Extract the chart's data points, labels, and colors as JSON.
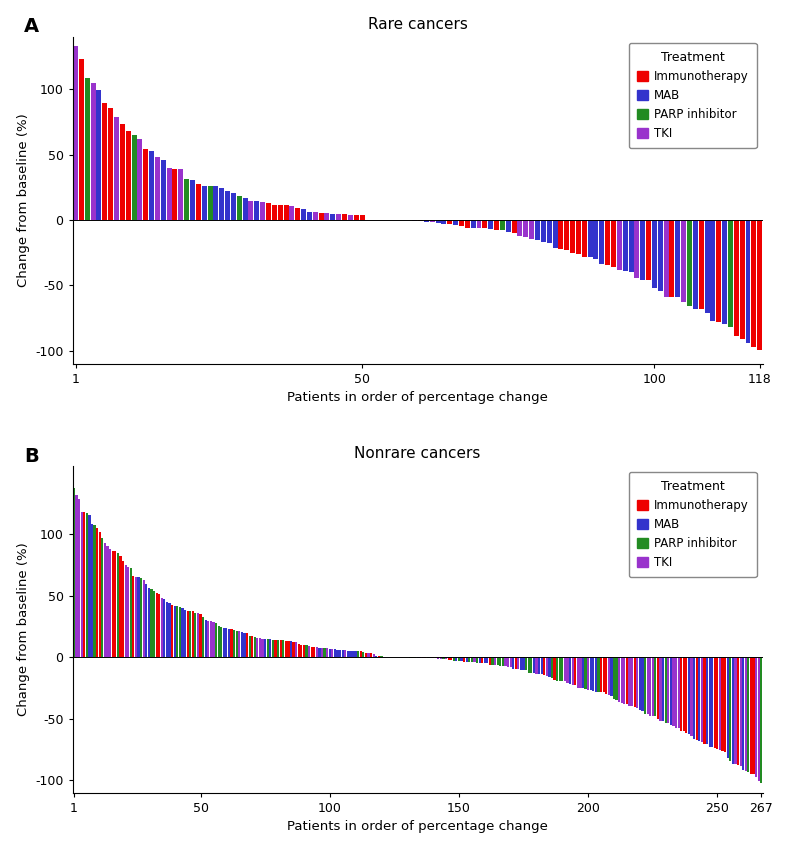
{
  "panel_A": {
    "title": "Rare cancers",
    "n_patients": 118,
    "n_positive": 50,
    "xlabel": "Patients in order of percentage change",
    "ylabel": "Change from baseline (%)",
    "ylim": [
      -110,
      140
    ],
    "yticks": [
      -100,
      -50,
      0,
      50,
      100
    ],
    "xticks": [
      1,
      50,
      100,
      118
    ],
    "label": "A",
    "max_val": 130,
    "min_val": -100
  },
  "panel_B": {
    "title": "Nonrare cancers",
    "n_patients": 267,
    "n_positive": 120,
    "xlabel": "Patients in order of percentage change",
    "ylabel": "Change from baseline (%)",
    "ylim": [
      -110,
      155
    ],
    "yticks": [
      -100,
      -50,
      0,
      50,
      100
    ],
    "xticks": [
      1,
      50,
      100,
      150,
      200,
      250,
      267
    ],
    "label": "B",
    "max_val": 135,
    "min_val": -100
  },
  "colors": {
    "Immunotherapy": "#EE0000",
    "MAB": "#3333CC",
    "PARP inhibitor": "#228B22",
    "TKI": "#9933CC"
  },
  "legend_title": "Treatment",
  "legend_entries": [
    "Immunotherapy",
    "MAB",
    "PARP inhibitor",
    "TKI"
  ],
  "background_color": "#FFFFFF"
}
